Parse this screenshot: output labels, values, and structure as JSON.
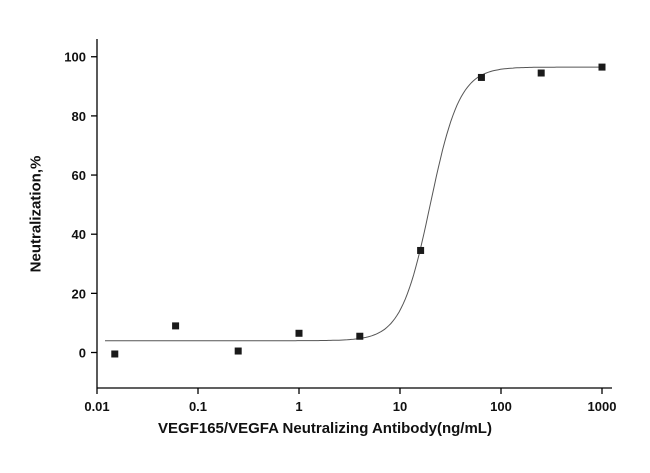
{
  "chart_data": {
    "type": "scatter",
    "title": "",
    "xlabel": "VEGF165/VEGFA Neutralizing Antibody(ng/mL)",
    "ylabel": "Neutralization,%",
    "x_scale": "log",
    "xlim": [
      0.01,
      1000
    ],
    "ylim": [
      -12,
      106
    ],
    "x_ticks": [
      0.01,
      0.1,
      1,
      10,
      100,
      1000
    ],
    "x_tick_labels": [
      "0.01",
      "0.1",
      "1",
      "10",
      "100",
      "1000"
    ],
    "y_ticks": [
      0,
      20,
      40,
      60,
      80,
      100
    ],
    "grid": false,
    "legend": "none",
    "marker": "square",
    "marker_size": 7,
    "marker_color": "#1a1a1a",
    "line_color": "#555555",
    "axis_color": "#000000",
    "points": [
      {
        "x": 0.015,
        "y": -0.5
      },
      {
        "x": 0.06,
        "y": 9
      },
      {
        "x": 0.25,
        "y": 0.5
      },
      {
        "x": 1,
        "y": 6.5
      },
      {
        "x": 4,
        "y": 5.5
      },
      {
        "x": 16,
        "y": 34.5
      },
      {
        "x": 64,
        "y": 93
      },
      {
        "x": 250,
        "y": 94.5
      },
      {
        "x": 1000,
        "y": 96.5
      }
    ],
    "fit_curve": {
      "model": "4PL",
      "bottom": 4,
      "top": 96.5,
      "ec50": 20,
      "hill": 3
    },
    "curve_x_range": [
      0.012,
      1000
    ]
  }
}
